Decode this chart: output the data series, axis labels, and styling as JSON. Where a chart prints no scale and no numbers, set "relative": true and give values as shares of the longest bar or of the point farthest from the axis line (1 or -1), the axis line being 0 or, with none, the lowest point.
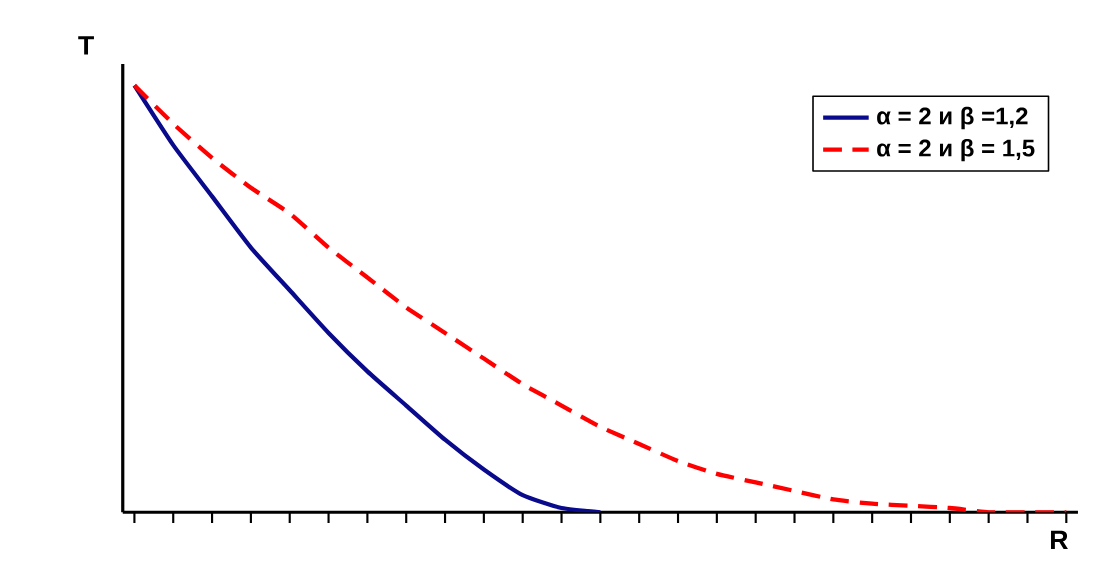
{
  "chart_data": {
    "type": "line",
    "relative": true,
    "xlabel": "R",
    "ylabel": "T",
    "legend": "top right",
    "categories": [
      null,
      null,
      null,
      null,
      null,
      null,
      null,
      null,
      null,
      null,
      null,
      null,
      null,
      null,
      null,
      null,
      null,
      null,
      null,
      null,
      null,
      null,
      null,
      null,
      null
    ],
    "series": [
      {
        "name": "α = 2 и β =1,2",
        "color": "#0a0a8c",
        "line_style": "solid",
        "values": [
          1.0,
          0.86,
          0.74,
          0.62,
          0.52,
          0.42,
          0.33,
          0.25,
          0.17,
          0.1,
          0.04,
          0.01,
          0,
          null,
          null,
          null,
          null,
          null,
          null,
          null,
          null,
          null,
          null,
          null,
          null
        ]
      },
      {
        "name": "α = 2 и β = 1,5",
        "color": "#ff0000",
        "line_style": "dashed",
        "values": [
          1.0,
          0.91,
          0.83,
          0.76,
          0.7,
          0.62,
          0.55,
          0.48,
          0.42,
          0.36,
          0.3,
          0.25,
          0.2,
          0.16,
          0.12,
          0.09,
          0.07,
          0.05,
          0.03,
          0.02,
          0.015,
          0.01,
          0,
          0,
          0
        ]
      }
    ]
  }
}
